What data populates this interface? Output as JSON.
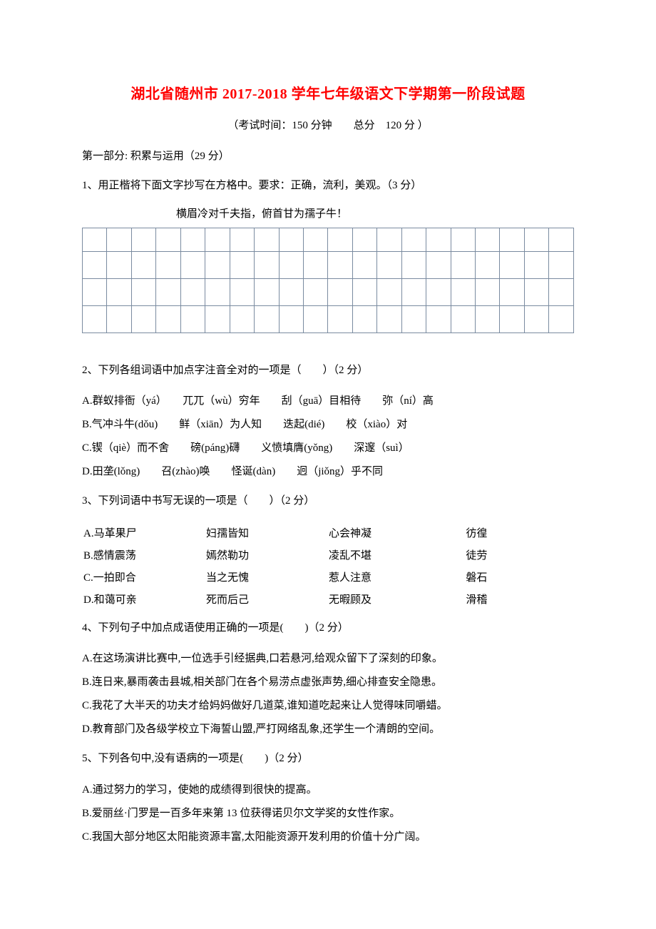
{
  "title": "湖北省随州市 2017-2018 学年七年级语文下学期第一阶段试题",
  "subtitle": "（考试时间：150 分钟　　总分　120 分 ）",
  "section1_label": "第一部分: 积累与运用（29 分）",
  "q1": {
    "prompt": "1、用正楷将下面文字抄写在方格中。要求：正确，流利，美观。（3 分）",
    "quote": "横眉冷对千夫指，俯首甘为孺子牛！",
    "grid_rows": 4,
    "grid_cols": 20,
    "grid_border_color": "#7a8ba0"
  },
  "q2": {
    "prompt": "2、下列各组词语中加点字注音全对的一项是（　　）（2 分）",
    "options": [
      "A.群蚁排衙（yá）　　兀兀（wù）穷年　　刮（guā）目相待　　弥（ní）高",
      "B.气冲斗牛(dǒu)　　鲜（xiān）为人知　　迭起(dié)　　校（xiào）对",
      "C.锲（qiè）而不舍　　磅(páng)礴　　义愤填膺(yǒng)　　深邃（suì）",
      "D.田垄(lǒng)　　召(zhào)唤　　怪诞(dàn)　　迥（jiǒng）乎不同"
    ]
  },
  "q3": {
    "prompt": "3、下列词语中书写无误的一项是（　　）（2 分）",
    "rows": [
      [
        "A.马革果尸",
        "妇孺皆知",
        "心会神凝",
        "彷徨"
      ],
      [
        "B.感情震荡",
        "嫣然勒功",
        "凌乱不堪",
        "徒劳"
      ],
      [
        "C.一拍即合",
        "当之无愧",
        "惹人注意",
        "磐石"
      ],
      [
        "D.和蔼可亲",
        "死而后己",
        "无暇顾及",
        "滑稽"
      ]
    ]
  },
  "q4": {
    "prompt": "4、下列句子中加点成语使用正确的一项是(　　)（2 分）",
    "options": [
      "A.在这场演讲比赛中,一位选手引经据典,口若悬河,给观众留下了深刻的印象。",
      "B.连日来,暴雨袭击县城,相关部门在各个易涝点虚张声势,细心排查安全隐患。",
      "C.我花了大半天的功夫才给妈妈做好几道菜,谁知道吃起来让人觉得味同嚼蜡。",
      "D.教育部门及各级学校立下海誓山盟,严打网络乱象,还学生一个清朗的空间。"
    ]
  },
  "q5": {
    "prompt": "5、下列各句中,没有语病的一项是(　　)（2 分）",
    "options": [
      "A.通过努力的学习，使她的成绩得到很快的提高。",
      "B.爱丽丝·门罗是一百多年来第 13 位获得诺贝尔文学奖的女性作家。",
      "C.我国大部分地区太阳能资源丰富,太阳能资源开发利用的价值十分广阔。"
    ]
  },
  "colors": {
    "title_color": "#ff0000",
    "text_color": "#000000",
    "background": "#ffffff"
  }
}
